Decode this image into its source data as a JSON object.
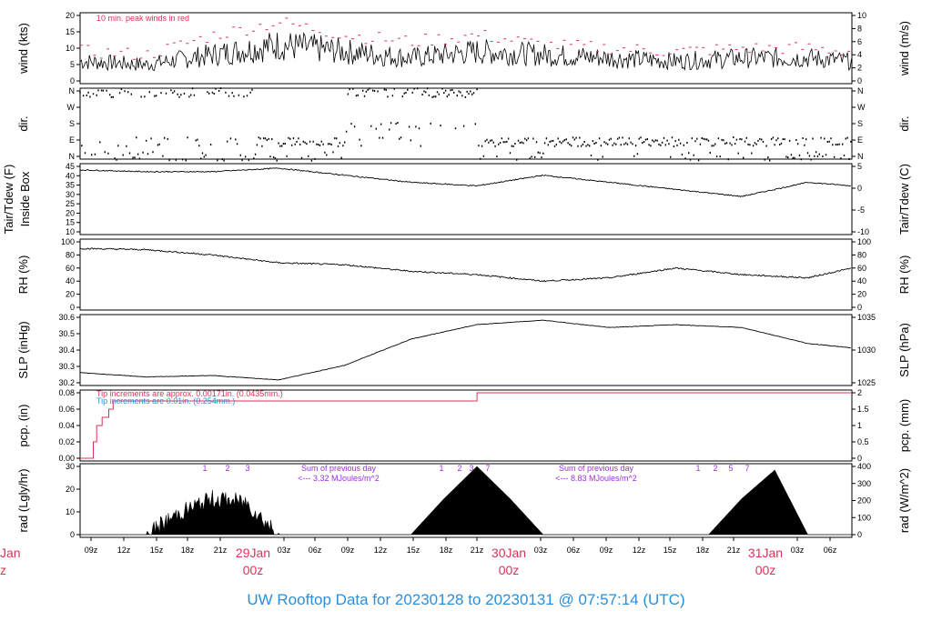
{
  "title_parts": {
    "prefix": "UW Rooftop Data for",
    "start": "20230128",
    "to": "to",
    "end": "20230131",
    "at": "@",
    "time": "07:57:14",
    "tz": "(UTC)"
  },
  "colors": {
    "title": "#2b8fd9",
    "peak": "#d9335a",
    "day_label": "#d9335a",
    "rad_note": "#9b30d9",
    "pcp_blue": "#2b8fd9"
  },
  "x_axis": {
    "ticks": [
      "09z",
      "12z",
      "15z",
      "18z",
      "21z",
      "03z",
      "06z",
      "09z",
      "12z",
      "15z",
      "18z",
      "21z",
      "03z",
      "06z",
      "09z",
      "12z",
      "15z",
      "18z",
      "21z",
      "03z",
      "06z"
    ],
    "day_labels": [
      {
        "day": "29Jan",
        "hour": "00z"
      },
      {
        "day": "30Jan",
        "hour": "00z"
      },
      {
        "day": "31Jan",
        "hour": "00z"
      }
    ],
    "cut_label": {
      "day": "Jan",
      "hour": "z"
    }
  },
  "charts": [
    {
      "id": "wind",
      "left_label": "wind (kts)",
      "right_label": "wind (m/s)",
      "left_ticks": [
        "20",
        "15",
        "10",
        "5",
        "0"
      ],
      "right_ticks": [
        "10",
        "8",
        "6",
        "4",
        "2",
        "0"
      ],
      "note": "10 min. peak winds in red"
    },
    {
      "id": "dir",
      "left_label": "dir.",
      "right_label": "dir.",
      "left_ticks": [
        "N",
        "W",
        "S",
        "E",
        "N"
      ],
      "right_ticks": [
        "N",
        "W",
        "S",
        "E",
        "N"
      ]
    },
    {
      "id": "temp",
      "left_label": "Tair/Tdew (F)",
      "left_label2": "Inside Box",
      "right_label": "Tair/Tdew (C)",
      "left_ticks": [
        "45",
        "40",
        "35",
        "30",
        "25",
        "20",
        "15",
        "10"
      ],
      "right_ticks": [
        "5",
        "0",
        "-5",
        "-10"
      ]
    },
    {
      "id": "rh",
      "left_label": "RH (%)",
      "right_label": "RH (%)",
      "left_ticks": [
        "100",
        "80",
        "60",
        "40",
        "20",
        "0"
      ],
      "right_ticks": [
        "100",
        "80",
        "60",
        "40",
        "20",
        "0"
      ]
    },
    {
      "id": "slp",
      "left_label": "SLP (inHg)",
      "right_label": "SLP (hPa)",
      "left_ticks": [
        "30.6",
        "30.5",
        "30.4",
        "30.3",
        "30.2"
      ],
      "right_ticks": [
        "1035",
        "1030",
        "1025"
      ]
    },
    {
      "id": "pcp",
      "left_label": "pcp. (in)",
      "right_label": "pcp. (mm)",
      "left_ticks": [
        "0.08",
        "0.06",
        "0.04",
        "0.02",
        "0.00"
      ],
      "right_ticks": [
        "2",
        "1.5",
        "1",
        "0.5",
        "0"
      ],
      "note1": "Tip increments are approx. 0.00171in. (0.0435mm.)",
      "note2": "Tip increments are 0.01in. (0.254mm.)"
    },
    {
      "id": "rad",
      "left_label": "rad (Lgly/hr)",
      "right_label": "rad (W/m^2)",
      "left_ticks": [
        "30",
        "20",
        "10",
        "0"
      ],
      "right_ticks": [
        "400",
        "300",
        "200",
        "100",
        "0"
      ],
      "notes": [
        {
          "line1": "Sum of previous day",
          "line2": "<--- 3.32 MJoules/m^2"
        },
        {
          "line1": "Sum of previous day",
          "line2": "<--- 8.83 MJoules/m^2"
        }
      ],
      "markers": [
        "1",
        "2",
        "3",
        "1",
        "2",
        "3",
        "7",
        "1",
        "2",
        "5",
        "7"
      ]
    }
  ],
  "chart_data": [
    {
      "type": "line",
      "id": "wind",
      "ylabel": "wind (kts)",
      "ylim": [
        0,
        20
      ],
      "x": [
        0,
        6,
        12,
        18,
        24,
        30,
        36,
        42,
        48,
        54,
        60,
        66,
        70
      ],
      "series": [
        {
          "values": [
            6,
            5,
            8,
            11,
            9,
            7,
            9,
            8,
            7,
            6,
            7,
            7,
            6
          ]
        },
        {
          "name": "10 min. peak winds",
          "values": [
            9,
            8,
            14,
            18,
            14,
            12,
            14,
            11,
            10,
            9,
            10,
            10,
            9
          ]
        }
      ]
    },
    {
      "type": "scatter",
      "id": "dir",
      "ylabel": "dir.",
      "categories": [
        "N",
        "E",
        "S",
        "W",
        "N"
      ]
    },
    {
      "type": "line",
      "id": "temp",
      "ylabel": "Tair/Tdew (F)",
      "ylim": [
        10,
        47
      ],
      "x": [
        0,
        6,
        12,
        18,
        24,
        30,
        36,
        42,
        48,
        54,
        60,
        66,
        70
      ],
      "values": [
        45,
        44,
        44,
        46,
        42,
        38,
        36,
        42,
        38,
        34,
        30,
        38,
        36
      ]
    },
    {
      "type": "line",
      "id": "rh",
      "ylabel": "RH (%)",
      "ylim": [
        0,
        100
      ],
      "x": [
        0,
        6,
        12,
        18,
        24,
        30,
        36,
        42,
        48,
        54,
        60,
        66,
        70
      ],
      "values": [
        90,
        88,
        80,
        68,
        65,
        55,
        50,
        40,
        45,
        60,
        50,
        45,
        60
      ]
    },
    {
      "type": "line",
      "id": "slp",
      "ylabel": "SLP (inHg)",
      "ylim": [
        30.15,
        30.6
      ],
      "x": [
        0,
        6,
        12,
        18,
        24,
        30,
        36,
        42,
        48,
        54,
        60,
        66,
        70
      ],
      "values": [
        30.22,
        30.19,
        30.2,
        30.17,
        30.27,
        30.45,
        30.55,
        30.58,
        30.53,
        30.55,
        30.53,
        30.42,
        30.39
      ]
    },
    {
      "type": "line",
      "id": "pcp",
      "ylabel": "pcp. (in)",
      "ylim": [
        0,
        0.08
      ],
      "x": [
        0,
        1,
        2,
        3,
        4,
        36,
        70
      ],
      "values": [
        0,
        0,
        0.04,
        0.07,
        0.075,
        0.08,
        0.08
      ]
    },
    {
      "type": "area",
      "id": "rad",
      "ylabel": "rad (Lgly/hr)",
      "ylim": [
        0,
        38
      ],
      "x": [
        0,
        6,
        9,
        12,
        15,
        18,
        21,
        30,
        33,
        36,
        39,
        42,
        57,
        60,
        63,
        66,
        70
      ],
      "values": [
        0,
        0,
        12,
        20,
        18,
        0,
        0,
        0,
        20,
        38,
        20,
        0,
        0,
        20,
        36,
        0,
        0
      ]
    }
  ]
}
